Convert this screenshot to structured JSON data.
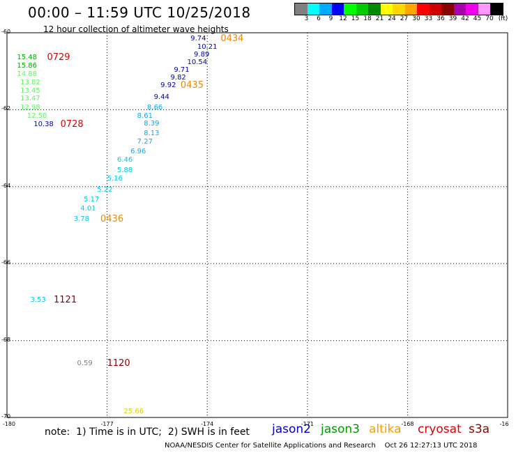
{
  "header": {
    "title": "00:00 – 11:59 UTC 10/25/2018",
    "subtitle": "12 hour collection of altimeter wave heights"
  },
  "legend": {
    "colors": [
      "#808080",
      "#00ffff",
      "#00aaff",
      "#0000ff",
      "#00ff00",
      "#00cc00",
      "#008800",
      "#ffff00",
      "#ffd700",
      "#ffa500",
      "#ff0000",
      "#cc0000",
      "#880000",
      "#aa00aa",
      "#ee00ee",
      "#ff99ff",
      "#000000"
    ],
    "ticks": [
      "3",
      "6",
      "9",
      "12",
      "15",
      "18",
      "21",
      "24",
      "27",
      "30",
      "33",
      "36",
      "39",
      "42",
      "45",
      "70",
      "(ft)"
    ]
  },
  "axes": {
    "y_labels": [
      "-60",
      "-62",
      "-64",
      "-66",
      "-68",
      "-70"
    ],
    "x_labels": [
      "-180",
      "-177",
      "-174",
      "-171",
      "-168",
      "-16"
    ]
  },
  "chart_data": {
    "type": "scatter",
    "xlim": [
      -180,
      -165
    ],
    "ylim": [
      -70,
      -60
    ],
    "points": [
      {
        "lon": -174.5,
        "lat": -60.17,
        "v": "9.74",
        "c": "#0000aa"
      },
      {
        "lon": -174.3,
        "lat": -60.38,
        "v": "10.21",
        "c": "#0000aa"
      },
      {
        "lon": -174.4,
        "lat": -60.58,
        "v": "9.89",
        "c": "#0000aa"
      },
      {
        "lon": -174.6,
        "lat": -60.78,
        "v": "10.54",
        "c": "#0000aa"
      },
      {
        "lon": -175.0,
        "lat": -60.98,
        "v": "9.71",
        "c": "#0000aa"
      },
      {
        "lon": -175.1,
        "lat": -61.18,
        "v": "9.82",
        "c": "#0000aa"
      },
      {
        "lon": -175.4,
        "lat": -61.38,
        "v": "9.92",
        "c": "#0000aa"
      },
      {
        "lon": -175.6,
        "lat": -61.68,
        "v": "9.44",
        "c": "#0000aa"
      },
      {
        "lon": -175.8,
        "lat": -61.95,
        "v": "8.66",
        "c": "#00aaff"
      },
      {
        "lon": -176.1,
        "lat": -62.17,
        "v": "8.61",
        "c": "#00aaff"
      },
      {
        "lon": -175.9,
        "lat": -62.38,
        "v": "8.39",
        "c": "#00aaff"
      },
      {
        "lon": -175.9,
        "lat": -62.63,
        "v": "8.13",
        "c": "#00aaff"
      },
      {
        "lon": -176.1,
        "lat": -62.85,
        "v": "7.27",
        "c": "#00aaff"
      },
      {
        "lon": -176.3,
        "lat": -63.1,
        "v": "6.96",
        "c": "#00aaff"
      },
      {
        "lon": -176.7,
        "lat": -63.32,
        "v": "6.46",
        "c": "#00c8e8"
      },
      {
        "lon": -176.7,
        "lat": -63.58,
        "v": "5.88",
        "c": "#00c8e8"
      },
      {
        "lon": -177.0,
        "lat": -63.8,
        "v": "5.16",
        "c": "#00c8e8"
      },
      {
        "lon": -177.3,
        "lat": -64.1,
        "v": "5.22",
        "c": "#00c8e8"
      },
      {
        "lon": -177.7,
        "lat": -64.35,
        "v": "5.17",
        "c": "#00c8e8"
      },
      {
        "lon": -177.8,
        "lat": -64.58,
        "v": "4.01",
        "c": "#00c8e8"
      },
      {
        "lon": -178.0,
        "lat": -64.85,
        "v": "3.78",
        "c": "#00c8e8"
      },
      {
        "lon": -179.7,
        "lat": -60.65,
        "v": "15.48",
        "c": "#00aa00"
      },
      {
        "lon": -179.7,
        "lat": -60.87,
        "v": "15.86",
        "c": "#00aa00"
      },
      {
        "lon": -179.7,
        "lat": -61.09,
        "v": "14.88",
        "c": "#66ee66"
      },
      {
        "lon": -179.6,
        "lat": -61.3,
        "v": "13.82",
        "c": "#66ee66"
      },
      {
        "lon": -179.6,
        "lat": -61.52,
        "v": "13.45",
        "c": "#66ee66"
      },
      {
        "lon": -179.6,
        "lat": -61.73,
        "v": "13.47",
        "c": "#66ee66"
      },
      {
        "lon": -179.6,
        "lat": -61.95,
        "v": "12.98",
        "c": "#66ee66"
      },
      {
        "lon": -179.4,
        "lat": -62.17,
        "v": "12.58",
        "c": "#66ee66"
      },
      {
        "lon": -179.2,
        "lat": -62.4,
        "v": "10.38",
        "c": "#0000aa"
      },
      {
        "lon": -179.3,
        "lat": -66.95,
        "v": "3.53",
        "c": "#00c8e8"
      },
      {
        "lon": -177.9,
        "lat": -68.6,
        "v": "0.59",
        "c": "#808080"
      },
      {
        "lon": -176.5,
        "lat": -69.85,
        "v": "25.66",
        "c": "#ddcc00"
      }
    ],
    "time_labels": [
      {
        "lon": -173.6,
        "lat": -60.17,
        "t": "0434",
        "c": "#ee8800"
      },
      {
        "lon": -174.8,
        "lat": -61.38,
        "t": "0435",
        "c": "#ee8800"
      },
      {
        "lon": -177.2,
        "lat": -64.85,
        "t": "0436",
        "c": "#ee8800"
      },
      {
        "lon": -178.8,
        "lat": -60.65,
        "t": "0729",
        "c": "#dd0000"
      },
      {
        "lon": -178.4,
        "lat": -62.4,
        "t": "0728",
        "c": "#dd0000"
      },
      {
        "lon": -178.6,
        "lat": -66.95,
        "t": "1121",
        "c": "#880000"
      },
      {
        "lon": -177.0,
        "lat": -68.6,
        "t": "1120",
        "c": "#880000"
      }
    ]
  },
  "footer": {
    "note": "note:  1) Time is in UTC;  2) SWH is in feet",
    "satellites": [
      {
        "name": "jason2",
        "color": "#0000cc"
      },
      {
        "name": "jason3",
        "color": "#009900"
      },
      {
        "name": "altika",
        "color": "#ff9900"
      },
      {
        "name": "cryosat",
        "color": "#dd0000"
      },
      {
        "name": "s3a",
        "color": "#880000"
      }
    ],
    "credit": "NOAA/NESDIS Center for Satellite Applications and Research    Oct 26 12:27:13 UTC 2018"
  }
}
